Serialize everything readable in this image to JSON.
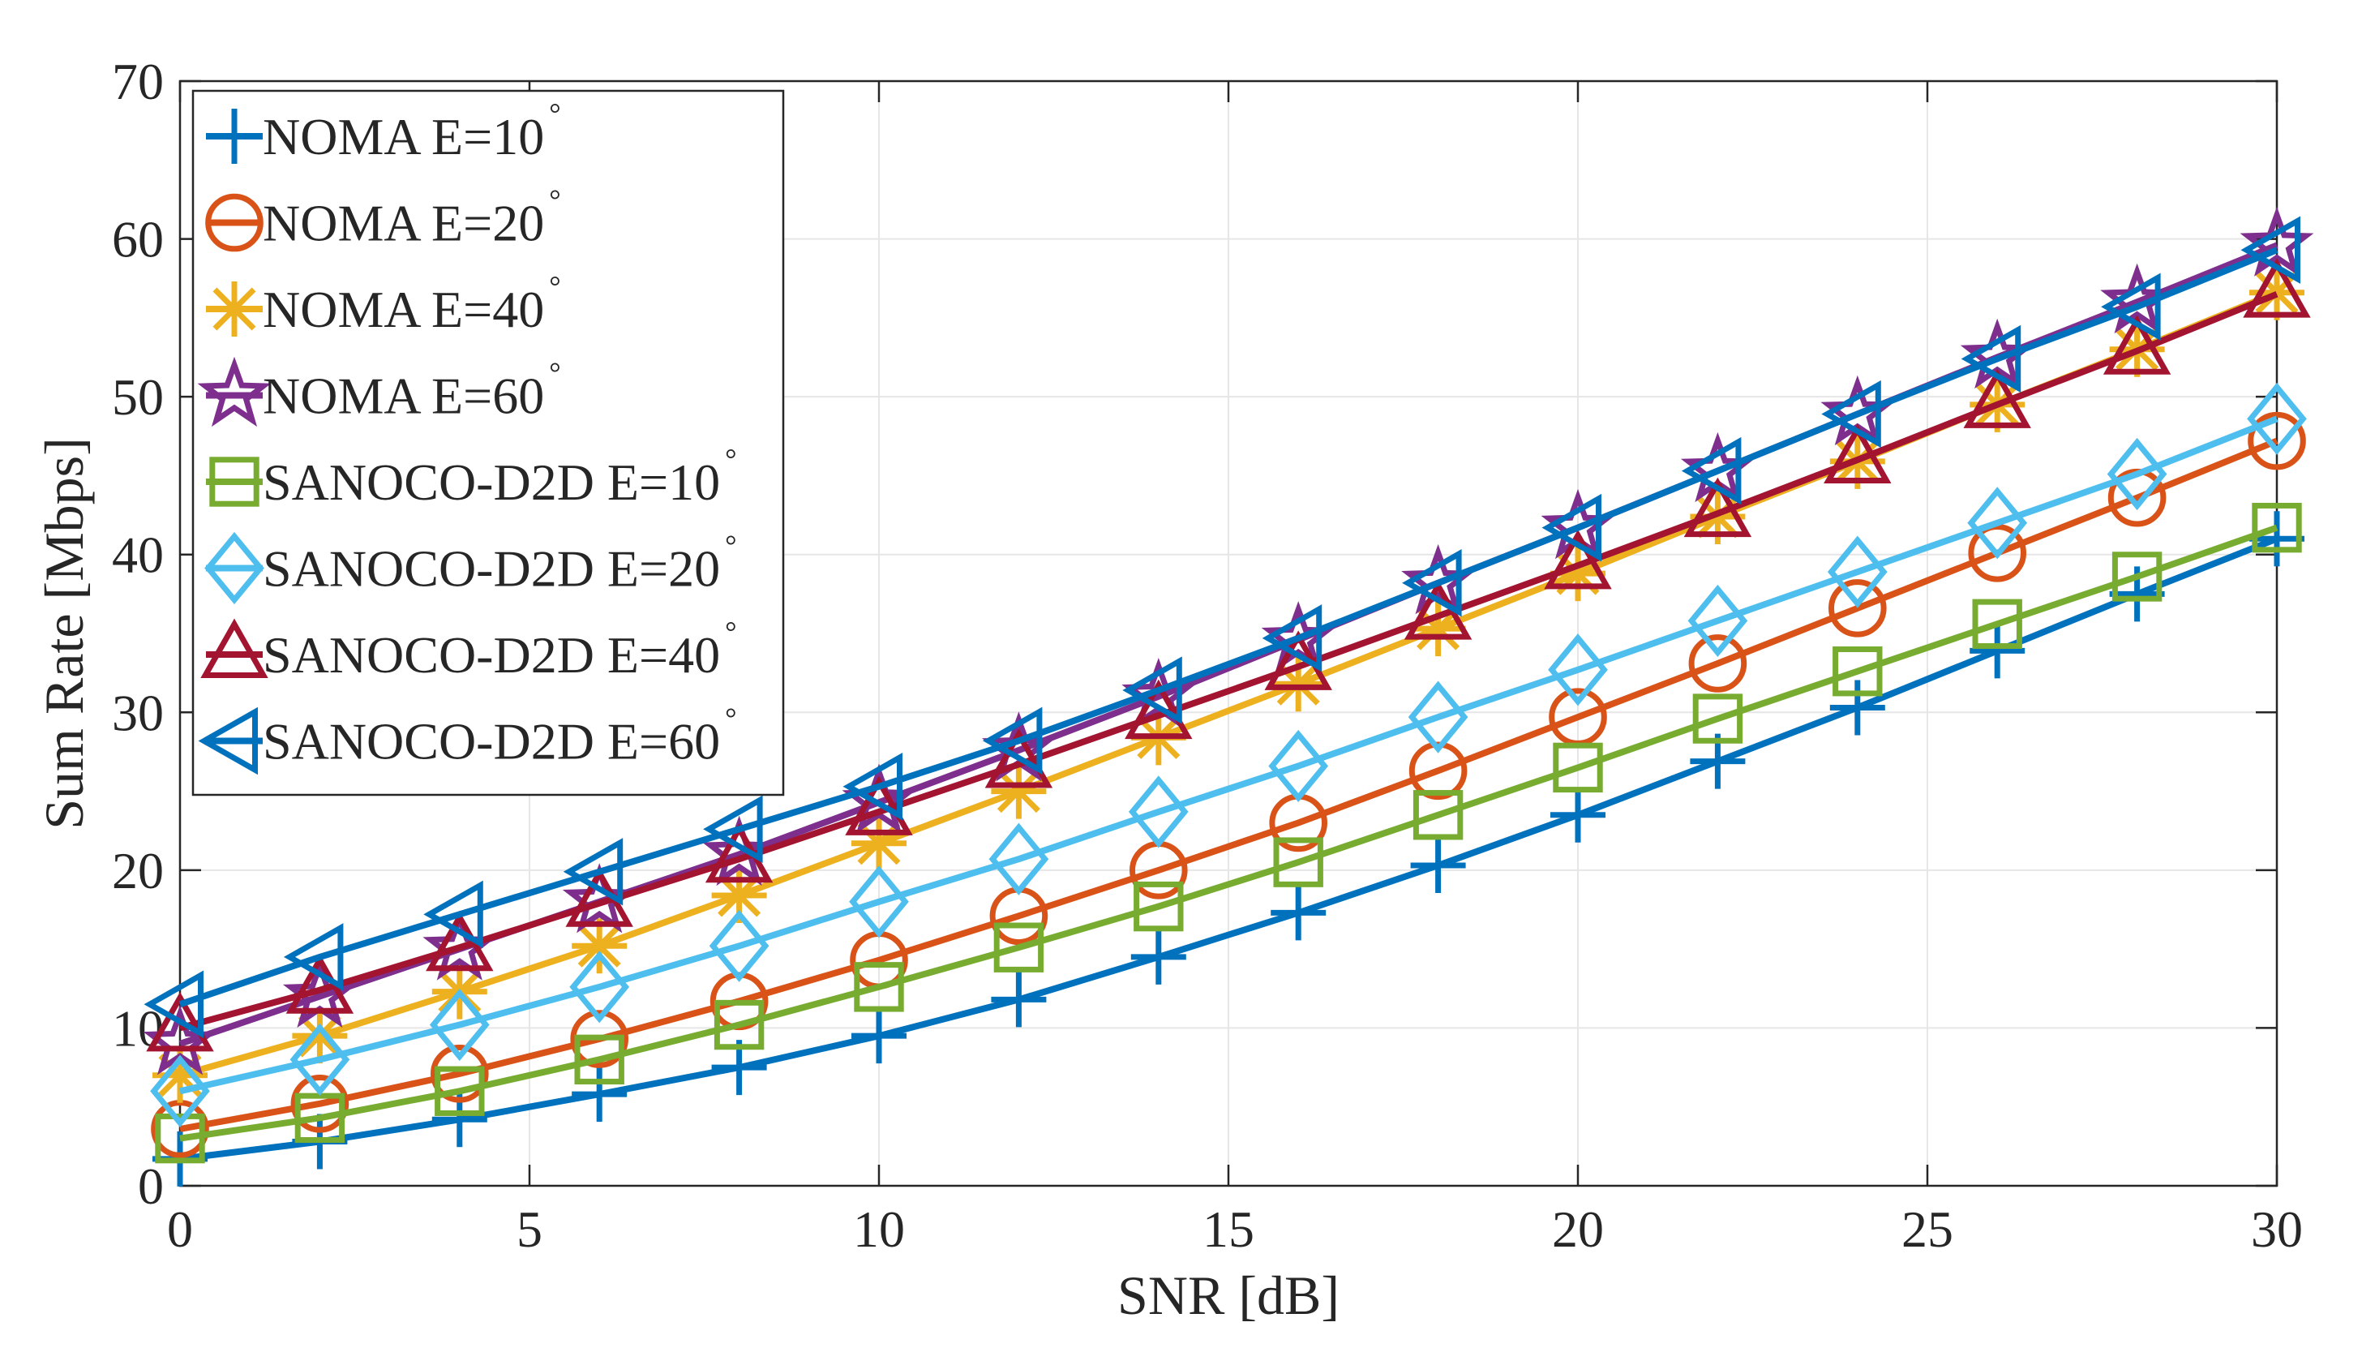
{
  "chart_data": {
    "type": "line",
    "title": "",
    "xlabel": "SNR [dB]",
    "ylabel": "Sum Rate [Mbps]",
    "xlim": [
      0,
      30
    ],
    "ylim": [
      0,
      70
    ],
    "xticks": [
      0,
      5,
      10,
      15,
      20,
      25,
      30
    ],
    "yticks": [
      0,
      10,
      20,
      30,
      40,
      50,
      60,
      70
    ],
    "xtick_labels": [
      "0",
      "5",
      "10",
      "15",
      "20",
      "25",
      "30"
    ],
    "ytick_labels": [
      "0",
      "10",
      "20",
      "30",
      "40",
      "50",
      "60",
      "70"
    ],
    "grid": true,
    "legend_position": "top-left",
    "x": [
      0,
      2,
      4,
      6,
      8,
      10,
      12,
      14,
      16,
      18,
      20,
      22,
      24,
      26,
      28,
      30
    ],
    "series": [
      {
        "name": "NOMA E=10",
        "marker": "plus",
        "color": "#0072BD",
        "values": [
          1.7,
          2.8,
          4.2,
          5.8,
          7.5,
          9.5,
          11.8,
          14.5,
          17.3,
          20.3,
          23.5,
          26.9,
          30.3,
          33.9,
          37.5,
          41.0
        ]
      },
      {
        "name": "NOMA E=20",
        "marker": "circle",
        "color": "#D95319",
        "values": [
          3.6,
          5.2,
          7.1,
          9.3,
          11.7,
          14.3,
          17.1,
          20.0,
          23.0,
          26.3,
          29.7,
          33.1,
          36.6,
          40.1,
          43.6,
          47.2
        ]
      },
      {
        "name": "NOMA E=40",
        "marker": "asterisk",
        "color": "#EDB120",
        "values": [
          7.0,
          9.5,
          12.3,
          15.2,
          18.4,
          21.7,
          25.0,
          28.4,
          31.8,
          35.3,
          38.8,
          42.4,
          45.9,
          49.5,
          53.0,
          56.6
        ]
      },
      {
        "name": "NOMA E=60",
        "marker": "pentagram",
        "color": "#7E2F8E",
        "values": [
          9.0,
          12.0,
          15.0,
          18.0,
          21.0,
          24.3,
          27.6,
          31.0,
          34.6,
          38.2,
          41.7,
          45.3,
          48.9,
          52.5,
          56.0,
          59.6
        ]
      },
      {
        "name": "SANOCO-D2D E=10",
        "marker": "square",
        "color": "#77AC30",
        "values": [
          3.0,
          4.3,
          6.0,
          8.0,
          10.2,
          12.6,
          15.1,
          17.7,
          20.5,
          23.5,
          26.5,
          29.6,
          32.6,
          35.6,
          38.6,
          41.7
        ]
      },
      {
        "name": "SANOCO-D2D E=20",
        "marker": "diamond",
        "color": "#4DBEEE",
        "values": [
          6.0,
          8.0,
          10.2,
          12.6,
          15.2,
          18.0,
          20.7,
          23.7,
          26.6,
          29.7,
          32.7,
          35.8,
          38.9,
          42.0,
          45.1,
          48.6
        ]
      },
      {
        "name": "SANOCO-D2D E=40",
        "marker": "triangle-up",
        "color": "#A2142F",
        "values": [
          10.0,
          12.4,
          15.1,
          17.9,
          20.7,
          23.7,
          26.7,
          29.8,
          32.9,
          36.1,
          39.3,
          42.6,
          46.0,
          49.5,
          52.9,
          56.5
        ]
      },
      {
        "name": "SANOCO-D2D E=60",
        "marker": "triangle-left",
        "color": "#0072BD",
        "values": [
          11.5,
          14.5,
          17.2,
          19.9,
          22.6,
          25.3,
          28.2,
          31.4,
          34.7,
          38.2,
          41.7,
          45.3,
          48.9,
          52.4,
          55.7,
          59.3
        ]
      }
    ]
  },
  "legend": {
    "degree_symbol": "°",
    "entries": [
      "NOMA E=10",
      "NOMA E=20",
      "NOMA E=40",
      "NOMA E=60",
      "SANOCO-D2D E=10",
      "SANOCO-D2D E=20",
      "SANOCO-D2D E=40",
      "SANOCO-D2D E=60"
    ]
  }
}
